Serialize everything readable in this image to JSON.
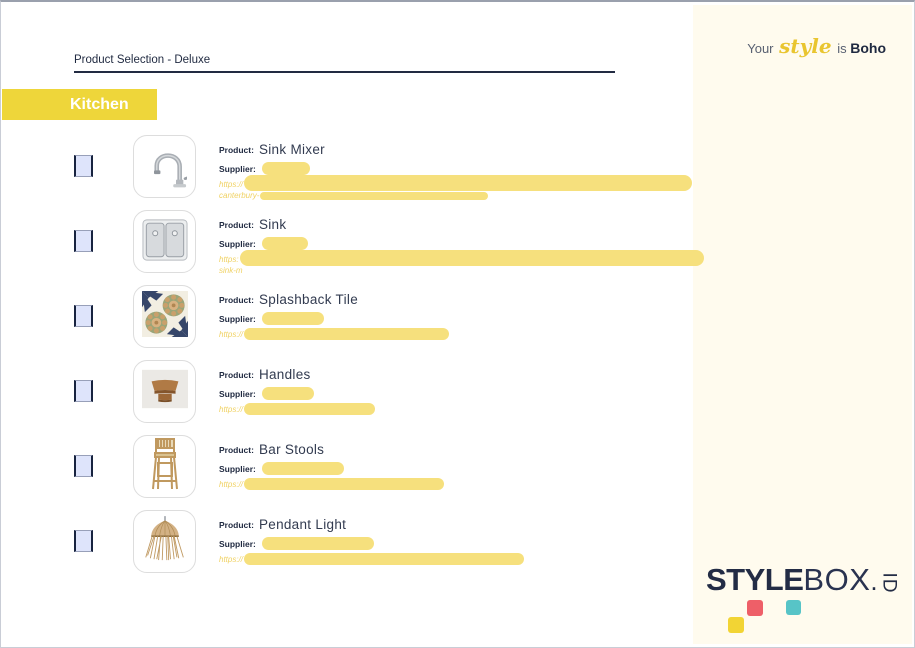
{
  "header": {
    "title": "Product Selection - Deluxe",
    "section_label": "Kitchen"
  },
  "brand": {
    "word1": "Your",
    "script_word": "style",
    "word2": "is",
    "style_name": "Boho"
  },
  "labels": {
    "product": "Product:",
    "supplier": "Supplier:"
  },
  "products": [
    {
      "name": "Sink Mixer",
      "image": "sink-mixer",
      "url_prefix": "https://",
      "url_fragment": "canterbury-",
      "supplier_redaction_width": 48,
      "url_redaction_width": 448,
      "url_two_line": true,
      "url_fragment_bar_width": 228
    },
    {
      "name": "Sink",
      "image": "sink",
      "url_prefix": "https:",
      "url_fragment": "sink-m",
      "supplier_redaction_width": 46,
      "url_redaction_width": 464,
      "url_two_line": true,
      "url_fragment_bar_width": 0
    },
    {
      "name": "Splashback Tile",
      "image": "splashback-tile",
      "url_prefix": "https://",
      "url_fragment": "",
      "supplier_redaction_width": 62,
      "url_redaction_width": 205,
      "url_two_line": false,
      "url_fragment_bar_width": 0
    },
    {
      "name": "Handles",
      "image": "handles",
      "url_prefix": "https://",
      "url_fragment": "",
      "supplier_redaction_width": 52,
      "url_redaction_width": 131,
      "url_two_line": false,
      "url_fragment_bar_width": 0
    },
    {
      "name": "Bar Stools",
      "image": "bar-stools",
      "url_prefix": "https://",
      "url_fragment": "",
      "supplier_redaction_width": 82,
      "url_redaction_width": 200,
      "url_two_line": false,
      "url_fragment_bar_width": 0
    },
    {
      "name": "Pendant Light",
      "image": "pendant-light",
      "url_prefix": "https://",
      "url_fragment": "",
      "supplier_redaction_width": 112,
      "url_redaction_width": 280,
      "url_two_line": false,
      "url_fragment_bar_width": 0
    }
  ],
  "logo": {
    "bold_part": "STYLE",
    "light_part": "BOX",
    "dot": ".",
    "rotated_part": "ID"
  },
  "colors": {
    "accent_yellow": "#eed63a",
    "redaction_yellow": "#f6e07d",
    "navy_text": "#1f2940",
    "cream_panel": "#fffbee",
    "checkbox_fill": "#dee4fb",
    "url_text_yellow": "#f0d264",
    "logo_square_yellow": "#f2d434",
    "logo_square_coral": "#ee5f68",
    "logo_square_teal": "#57c4c7"
  }
}
